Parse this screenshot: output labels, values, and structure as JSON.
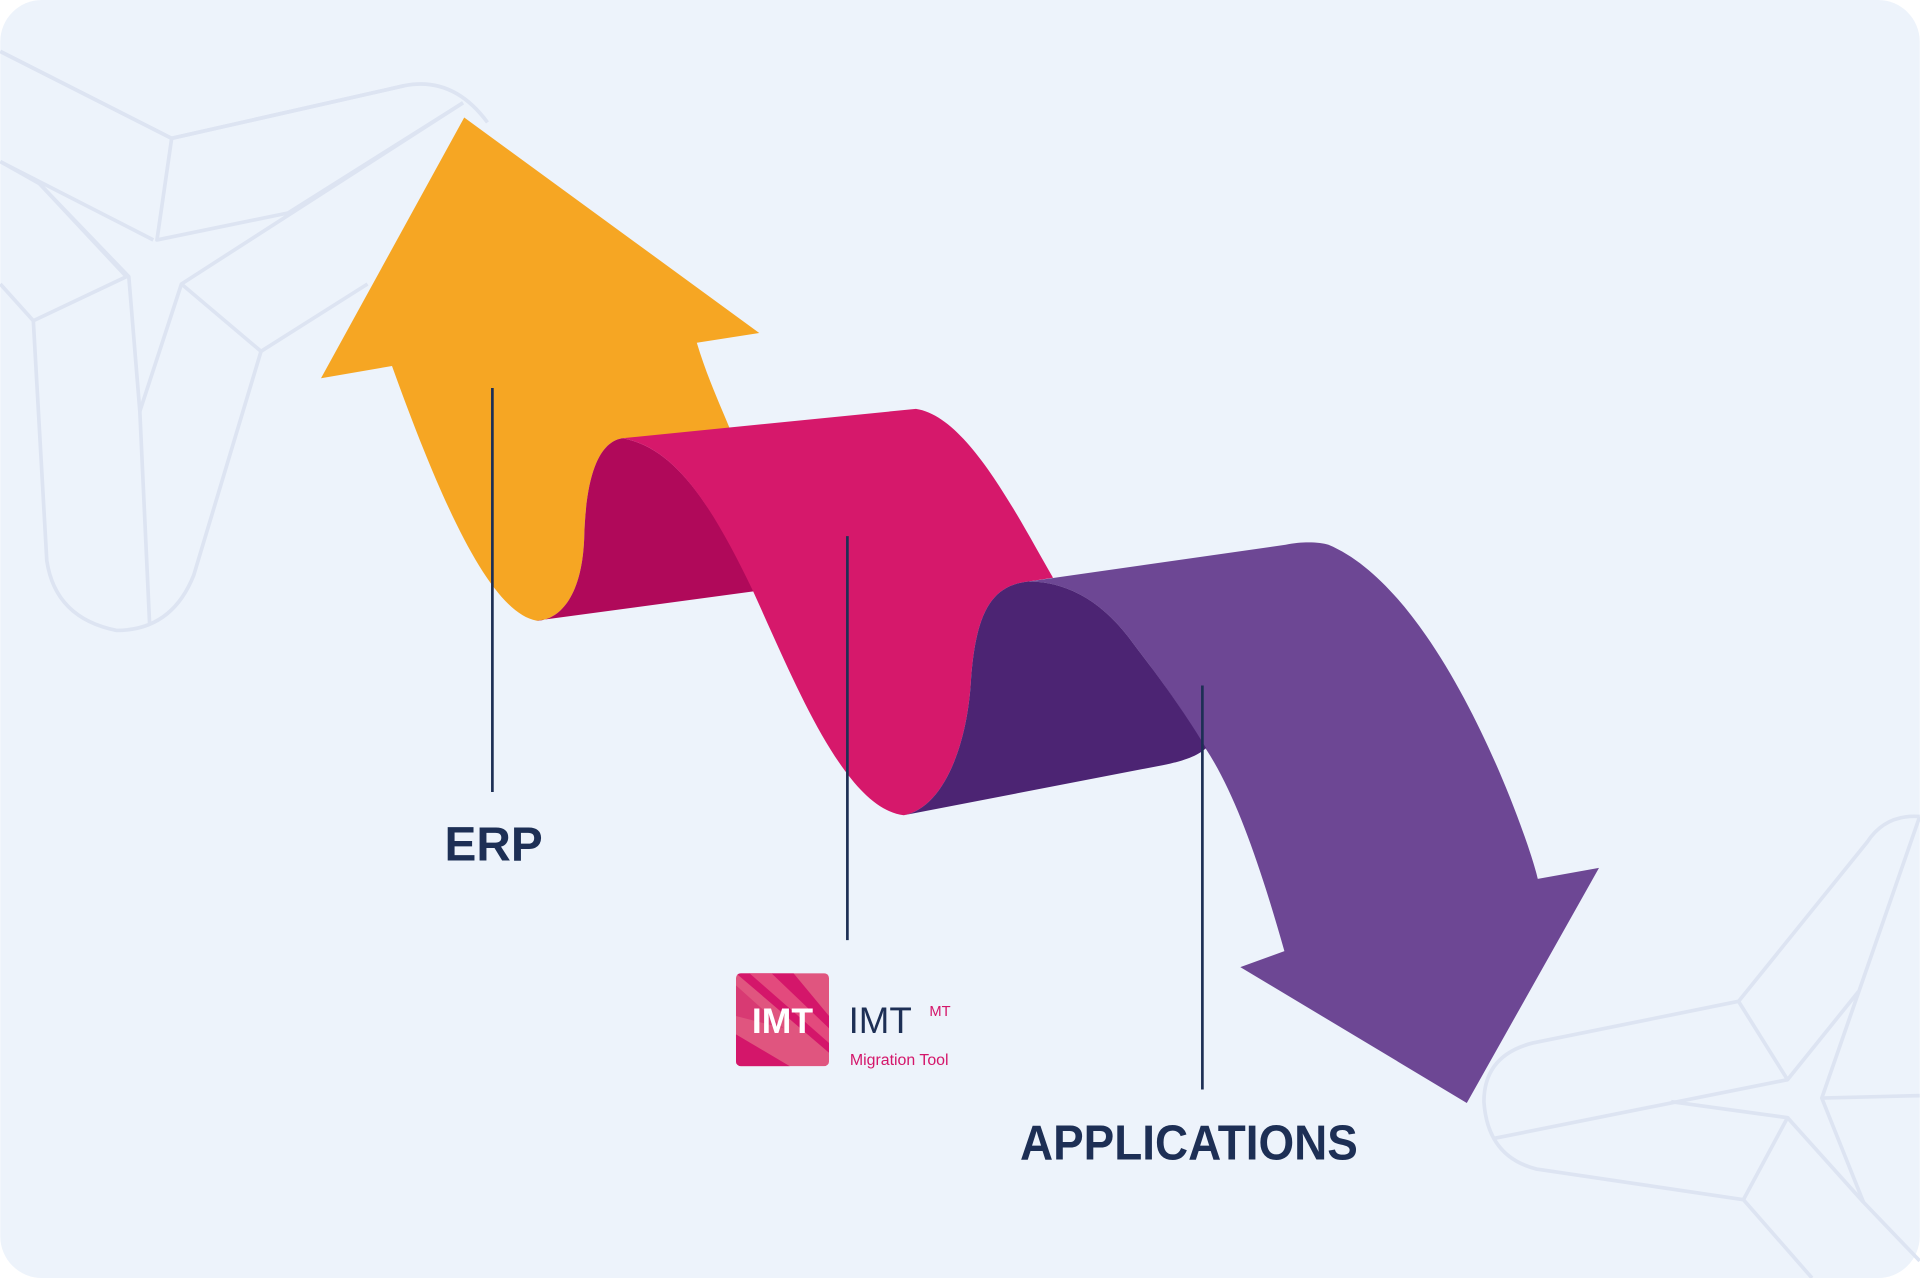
{
  "diagram": {
    "labels": {
      "erp": "ERP",
      "applications": "APPLICATIONS"
    },
    "logo": {
      "badge_text": "IMT",
      "name": "IMT",
      "superscript": "MT",
      "tagline": "Migration Tool"
    },
    "colors": {
      "background": "#edf3fb",
      "decor_lines": "#dde4f2",
      "erp_arrow": "#f6a623",
      "imt_band": "#d6186b",
      "imt_band_fold": "#b0095a",
      "applications_arrow": "#6d4794",
      "applications_fold": "#4c2473",
      "label_text": "#1d2f55",
      "logo_accent": "#d4166a"
    },
    "flow": [
      "ERP",
      "IMT Migration Tool",
      "APPLICATIONS"
    ]
  }
}
